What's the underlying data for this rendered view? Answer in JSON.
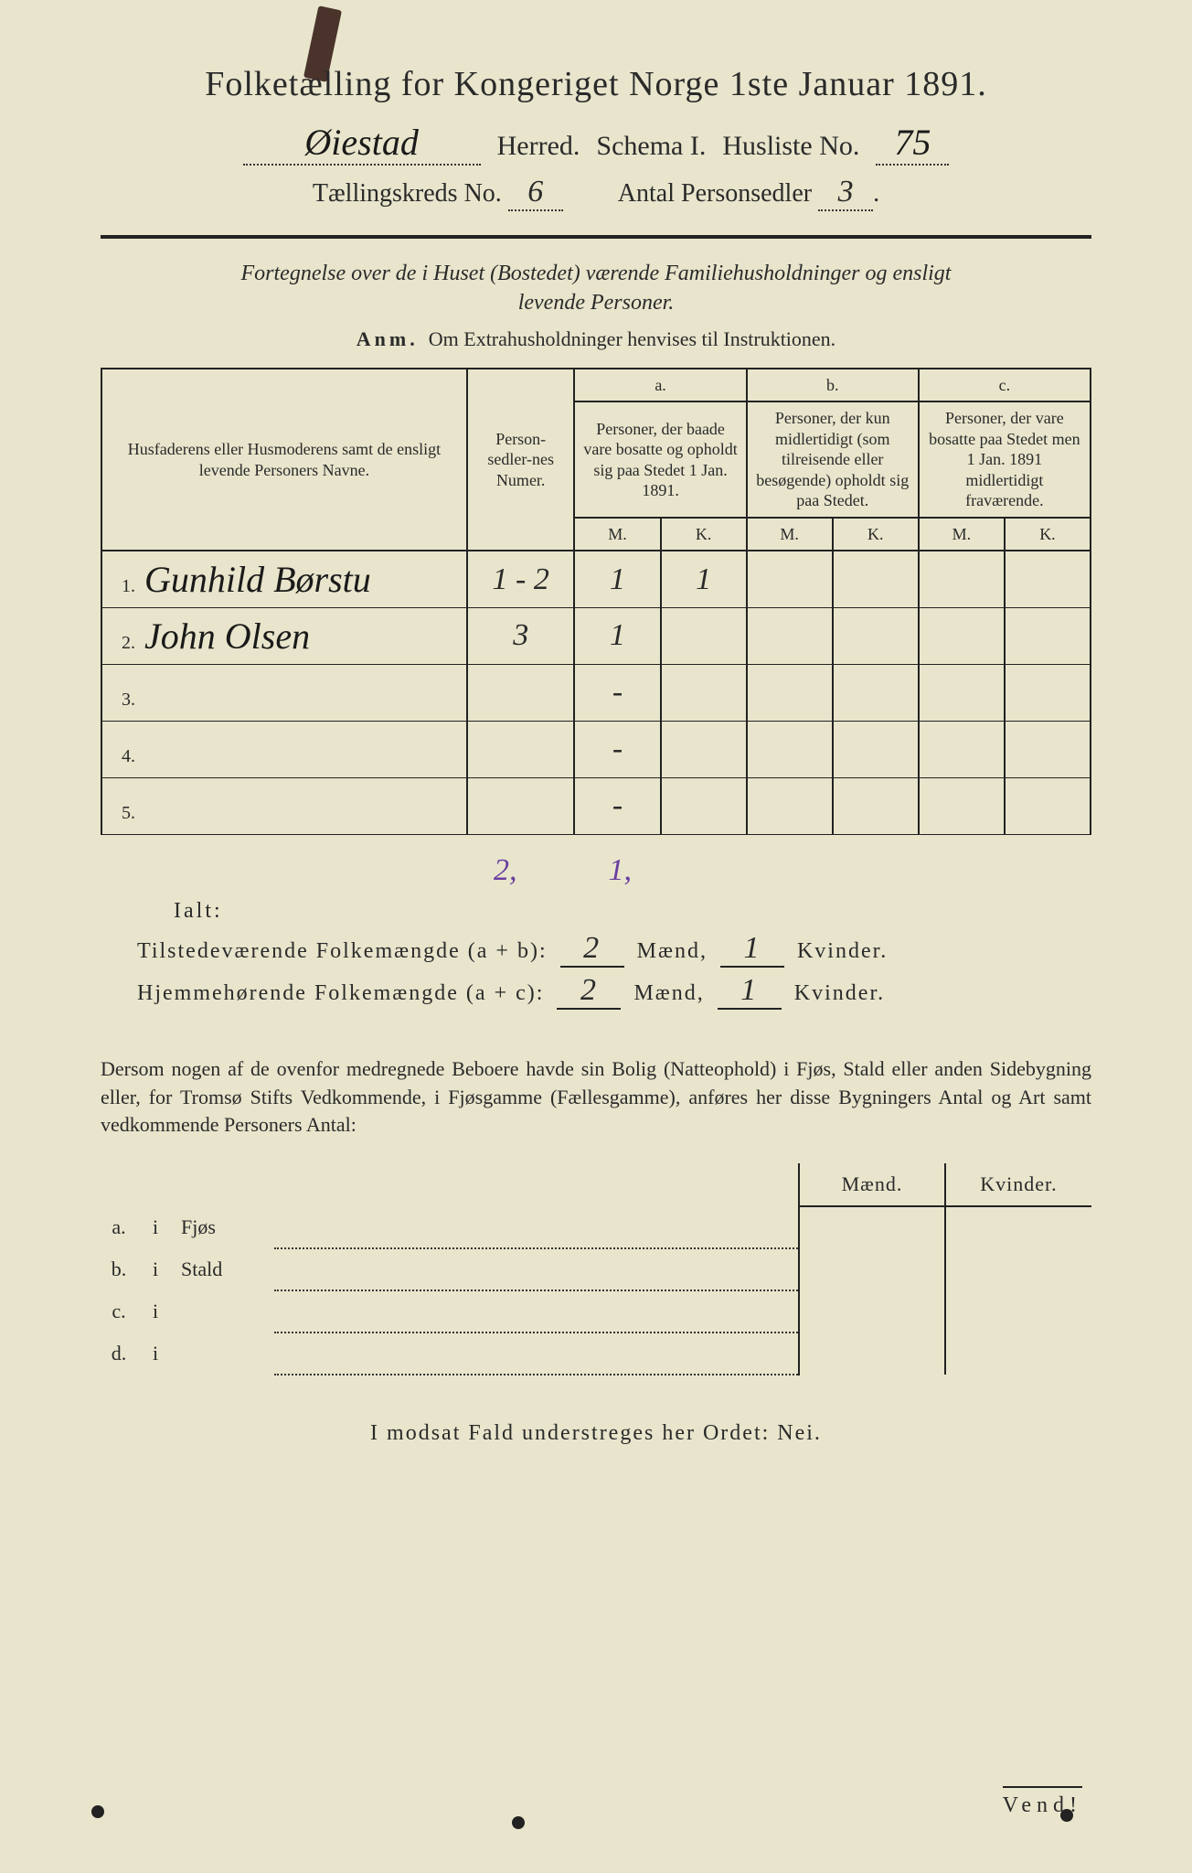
{
  "title": "Folketælling for Kongeriget Norge 1ste Januar 1891.",
  "herred_value": "Øiestad",
  "herred_label": "Herred.",
  "schema_label": "Schema I.",
  "husliste_label": "Husliste No.",
  "husliste_value": "75",
  "kreds_label": "Tællingskreds No.",
  "kreds_value": "6",
  "antal_label": "Antal Personsedler",
  "antal_value": "3",
  "intro_line1": "Fortegnelse over de i Huset (Bostedet) værende Familiehusholdninger og ensligt",
  "intro_line2": "levende Personer.",
  "anm_prefix": "Anm.",
  "anm_text": "Om Extrahusholdninger henvises til Instruktionen.",
  "table": {
    "head_name": "Husfaderens eller Husmoderens samt de ensligt levende Personers Navne.",
    "head_num": "Person-sedler-nes Numer.",
    "head_a_letter": "a.",
    "head_a": "Personer, der baade vare bosatte og opholdt sig paa Stedet 1 Jan. 1891.",
    "head_b_letter": "b.",
    "head_b": "Personer, der kun midlertidigt (som tilreisende eller besøgende) opholdt sig paa Stedet.",
    "head_c_letter": "c.",
    "head_c": "Personer, der vare bosatte paa Stedet men 1 Jan. 1891 midlertidigt fraværende.",
    "m": "M.",
    "k": "K.",
    "rows": [
      {
        "n": "1.",
        "name": "Gunhild Børstu",
        "num": "1 - 2",
        "am": "1",
        "ak": "1",
        "bm": "",
        "bk": "",
        "cm": "",
        "ck": ""
      },
      {
        "n": "2.",
        "name": "John Olsen",
        "num": "3",
        "am": "1",
        "ak": "",
        "bm": "",
        "bk": "",
        "cm": "",
        "ck": ""
      },
      {
        "n": "3.",
        "name": "",
        "num": "",
        "am": "-",
        "ak": "",
        "bm": "",
        "bk": "",
        "cm": "",
        "ck": ""
      },
      {
        "n": "4.",
        "name": "",
        "num": "",
        "am": "-",
        "ak": "",
        "bm": "",
        "bk": "",
        "cm": "",
        "ck": ""
      },
      {
        "n": "5.",
        "name": "",
        "num": "",
        "am": "-",
        "ak": "",
        "bm": "",
        "bk": "",
        "cm": "",
        "ck": ""
      }
    ],
    "purple_m": "2,",
    "purple_k": "1,"
  },
  "ialt_label": "Ialt:",
  "tilstede_label": "Tilstedeværende Folkemængde (a + b):",
  "hjemme_label": "Hjemmehørende Folkemængde (a + c):",
  "tilstede_m": "2",
  "tilstede_k": "1",
  "hjemme_m": "2",
  "hjemme_k": "1",
  "maend": "Mænd,",
  "kvinder": "Kvinder.",
  "para_text": "Dersom nogen af de ovenfor medregnede Beboere havde sin Bolig (Natteophold) i Fjøs, Stald eller anden Sidebygning eller, for Tromsø Stifts Vedkommende, i Fjøsgamme (Fællesgamme), anføres her disse Bygningers Antal og Art samt vedkommende Personers Antal:",
  "sub": {
    "maend": "Mænd.",
    "kvinder": "Kvinder.",
    "rows": [
      {
        "l": "a.",
        "i": "i",
        "kind": "Fjøs"
      },
      {
        "l": "b.",
        "i": "i",
        "kind": "Stald"
      },
      {
        "l": "c.",
        "i": "i",
        "kind": ""
      },
      {
        "l": "d.",
        "i": "i",
        "kind": ""
      }
    ]
  },
  "nei_text": "I modsat Fald understreges her Ordet: Nei.",
  "vend": "Vend!",
  "colors": {
    "paper": "#e8e5cc",
    "ink": "#2a2a2a",
    "purple": "#6a3fa0",
    "staple": "#4a332a"
  }
}
